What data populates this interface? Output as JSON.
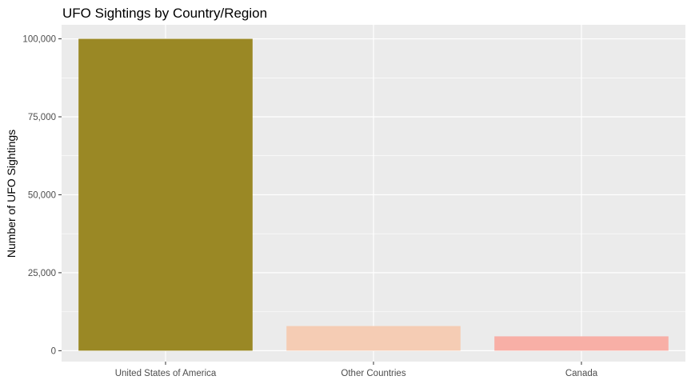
{
  "chart_data": {
    "type": "bar",
    "title": "UFO Sightings by Country/Region",
    "xlabel": "",
    "ylabel": "Number of UFO Sightings",
    "categories": [
      "United States of America",
      "Other Countries",
      "Canada"
    ],
    "values": [
      100000,
      7900,
      4600
    ],
    "colors": [
      "#9A8825",
      "#F5CCB4",
      "#F8AFA6"
    ],
    "ylim": [
      -3500,
      104500
    ],
    "yticks": [
      0,
      25000,
      50000,
      75000,
      100000
    ],
    "ytick_labels": [
      "0",
      "25,000",
      "50,000",
      "75,000",
      "100,000"
    ],
    "panel_background": "#EBEBEB",
    "grid": true,
    "legend": "none"
  }
}
